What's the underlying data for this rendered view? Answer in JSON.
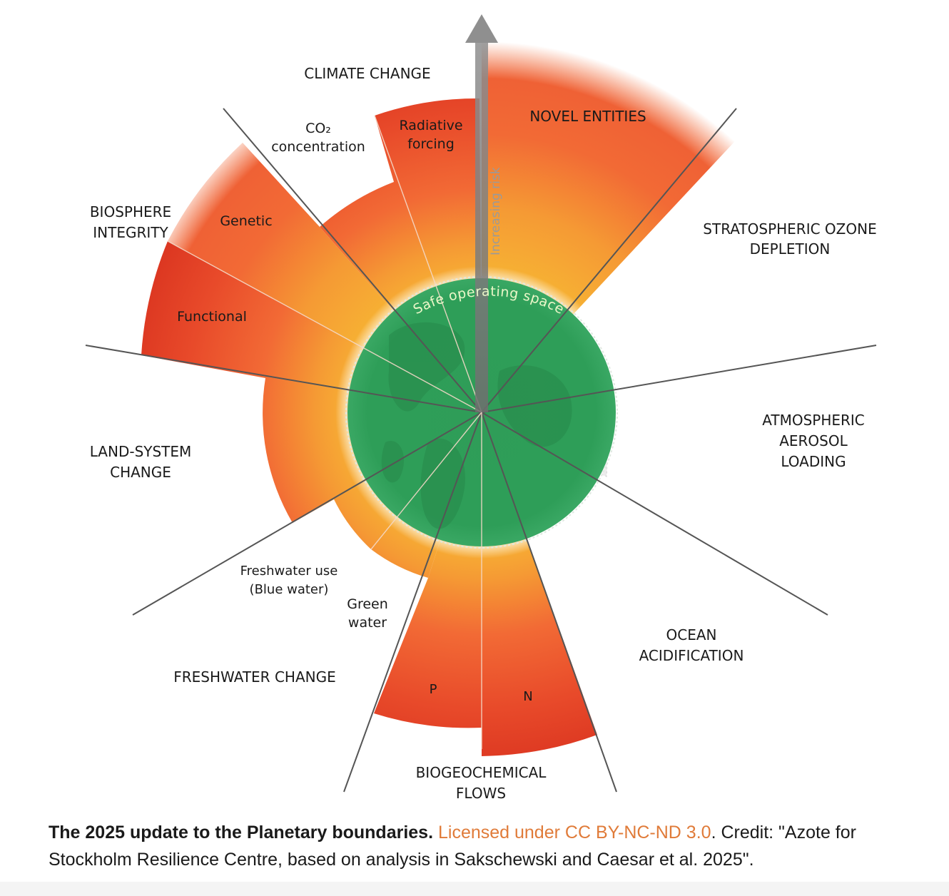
{
  "diagram": {
    "arrow_label": "Increasing risk",
    "safe_space_label": "Safe operating space",
    "boundaries": {
      "climate_change": "CLIMATE CHANGE",
      "co2": "CO₂",
      "co2_sub": "concentration",
      "radiative": "Radiative",
      "radiative_sub": "forcing",
      "novel_entities": "NOVEL ENTITIES",
      "ozone_1": "STRATOSPHERIC OZONE",
      "ozone_2": "DEPLETION",
      "aerosol_1": "ATMOSPHERIC",
      "aerosol_2": "AEROSOL",
      "aerosol_3": "LOADING",
      "ocean_1": "OCEAN",
      "ocean_2": "ACIDIFICATION",
      "bio_flows_1": "BIOGEOCHEMICAL",
      "bio_flows_2": "FLOWS",
      "n": "N",
      "p": "P",
      "freshwater_change": "FRESHWATER CHANGE",
      "green_1": "Green",
      "green_2": "water",
      "blue_1": "Freshwater use",
      "blue_2": "(Blue water)",
      "land_1": "LAND-SYSTEM",
      "land_2": "CHANGE",
      "biosphere_1": "BIOSPHERE",
      "biosphere_2": "INTEGRITY",
      "genetic": "Genetic",
      "functional": "Functional"
    },
    "colors": {
      "safe_green": "#2e9e58",
      "zone_yellow": "#f7b733",
      "zone_orange": "#f26a35",
      "zone_red": "#d9321f",
      "ozone_grey": "#d8d8d8",
      "spoke": "#555555",
      "arrow": "#9a9a9a"
    }
  },
  "caption": {
    "title": "The 2025 update to the Planetary boundaries.",
    "license": "Licensed under CC BY-NC-ND 3.0",
    "credit": ". Credit: \"Azote for Stockholm Resilience Centre, based on analysis in Sakschewski and Caesar et al. 2025\"."
  }
}
